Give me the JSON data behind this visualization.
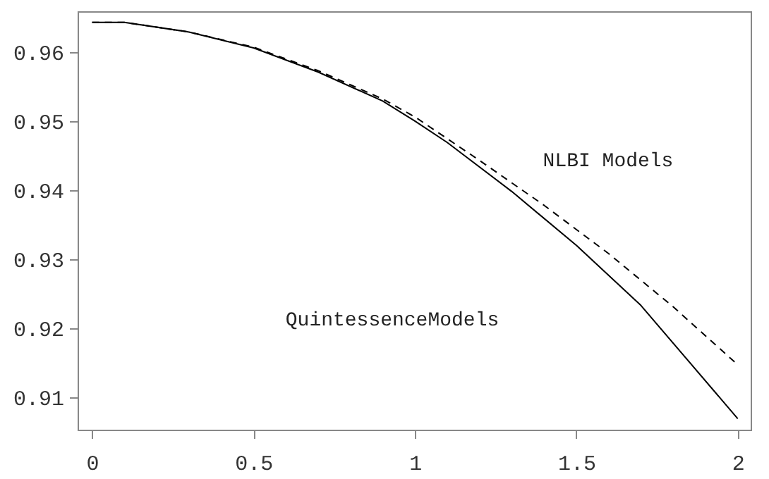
{
  "chart_data": {
    "type": "line",
    "xlim": [
      -0.045,
      2.04
    ],
    "xticks": [
      0,
      0.5,
      1,
      1.5,
      2
    ],
    "ylim": [
      0.9053,
      0.9659
    ],
    "yticks": [
      0.91,
      0.92,
      0.93,
      0.94,
      0.95,
      0.96
    ],
    "grid": false,
    "marker": "none",
    "series": [
      {
        "color": "#000000",
        "line_style": "solid",
        "x": [
          0,
          0.1,
          0.3,
          0.5,
          0.7,
          0.9,
          1.0,
          1.1,
          1.3,
          1.5,
          1.7,
          2.0
        ],
        "values": [
          0.9643,
          0.9643,
          0.9629,
          0.9606,
          0.9571,
          0.9529,
          0.95,
          0.9469,
          0.9398,
          0.932,
          0.9233,
          0.9069
        ]
      },
      {
        "color": "#000000",
        "line_style": "dashed",
        "x": [
          0,
          0.1,
          0.3,
          0.5,
          0.7,
          0.9,
          1.0,
          1.2,
          1.4,
          1.6,
          1.8,
          2.0
        ],
        "values": [
          0.9643,
          0.9643,
          0.9629,
          0.9607,
          0.9573,
          0.9532,
          0.9506,
          0.9443,
          0.9378,
          0.9308,
          0.9231,
          0.9147
        ]
      }
    ],
    "annotations": [
      "NLBI Models",
      "QuintessenceModels"
    ]
  }
}
